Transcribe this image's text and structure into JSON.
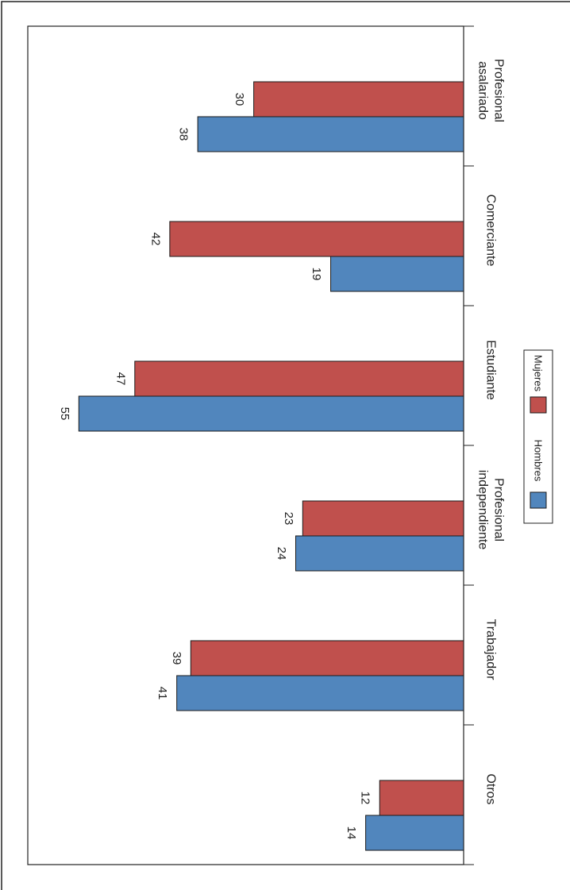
{
  "chart_data": {
    "type": "bar",
    "orientation": "horizontal",
    "rotated": "90deg-clockwise",
    "categories": [
      "Otros",
      "Trabajador",
      "Profesional independiente",
      "Estudiante",
      "Comerciante",
      "Profesional asalariado"
    ],
    "category_lines": [
      [
        "Otros"
      ],
      [
        "Trabajador"
      ],
      [
        "Profesional",
        "independiente"
      ],
      [
        "Estudiante"
      ],
      [
        "Comerciante"
      ],
      [
        "Profesional",
        "asalariado"
      ]
    ],
    "series": [
      {
        "name": "Hombres",
        "values": [
          14,
          41,
          24,
          55,
          19,
          38
        ],
        "color": "#5186bd"
      },
      {
        "name": "Mujeres",
        "values": [
          12,
          39,
          23,
          47,
          42,
          30
        ],
        "color": "#c0504d"
      }
    ],
    "xlim": [
      0,
      62
    ],
    "data_labels": true,
    "legend": {
      "placement": "center-right",
      "entries": [
        "Hombres",
        "Mujeres"
      ]
    },
    "grid": false,
    "title": "",
    "xlabel": "",
    "ylabel": ""
  }
}
